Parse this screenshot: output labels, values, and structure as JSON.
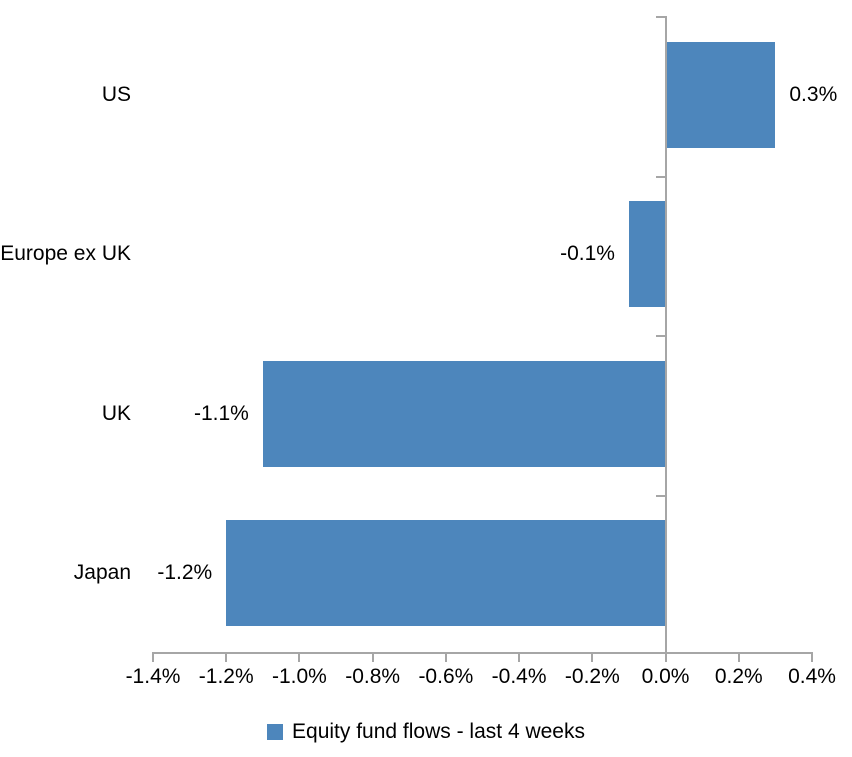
{
  "chart_data": {
    "type": "bar",
    "orientation": "horizontal",
    "categories": [
      "US",
      "Europe ex UK",
      "UK",
      "Japan"
    ],
    "values": [
      0.3,
      -0.1,
      -1.1,
      -1.2
    ],
    "value_labels": [
      "0.3%",
      "-0.1%",
      "-1.1%",
      "-1.2%"
    ],
    "series_name": "Equity fund flows - last 4 weeks",
    "xlim": [
      -1.4,
      0.4
    ],
    "x_tick_step": 0.2,
    "x_tick_labels": [
      "-1.4%",
      "-1.2%",
      "-1.0%",
      "-0.8%",
      "-0.6%",
      "-0.4%",
      "-0.2%",
      "0.0%",
      "0.2%",
      "0.4%"
    ],
    "unit": "%",
    "grid": false,
    "legend_position": "bottom",
    "bar_color": "#4D86BC",
    "axis_color": "#A6A6A6",
    "text_color": "#000000",
    "background_color": "#FFFFFF"
  }
}
